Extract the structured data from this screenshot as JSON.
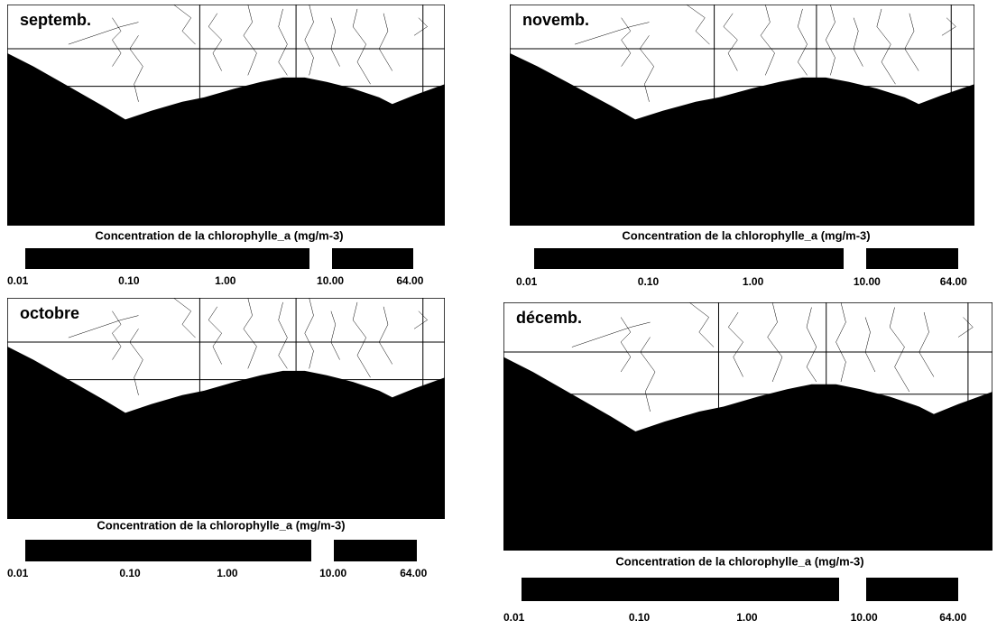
{
  "panels": [
    {
      "label": "septemb.",
      "colorbar_title": "Concentration de la chlorophylle_a (mg/m-3)",
      "ticks": [
        "0.01",
        "0.10",
        "1.00",
        "10.00",
        "64.00"
      ]
    },
    {
      "label": "novemb.",
      "colorbar_title": "Concentration de la chlorophylle_a (mg/m-3)",
      "ticks": [
        "0.01",
        "0.10",
        "1.00",
        "10.00",
        "64.00"
      ]
    },
    {
      "label": "octobre",
      "colorbar_title": "Concentration de la chlorophylle_a (mg/m-3)",
      "ticks": [
        "0.01",
        "0.10",
        "1.00",
        "10.00",
        "64.00"
      ]
    },
    {
      "label": "décemb.",
      "colorbar_title": "Concentration de la chlorophylle_a (mg/m-3)",
      "ticks": [
        "0.01",
        "0.10",
        "1.00",
        "10.00",
        "64.00"
      ]
    }
  ]
}
